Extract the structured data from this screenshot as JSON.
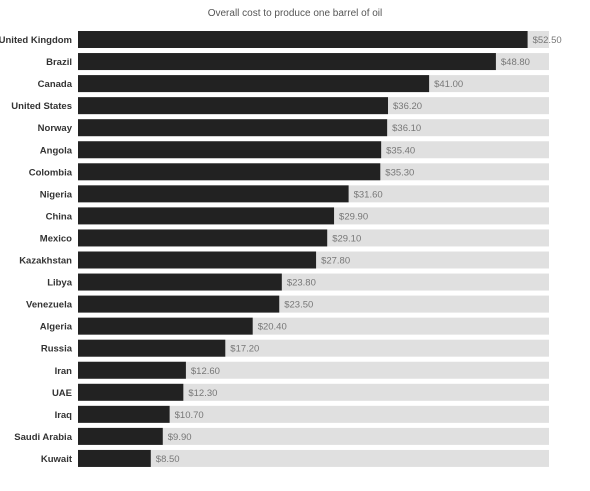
{
  "chart_data": {
    "type": "bar",
    "orientation": "horizontal",
    "title": "Overall cost to produce one barrel of oil",
    "xlabel": "",
    "ylabel": "",
    "value_prefix": "$",
    "xlim": [
      0,
      55
    ],
    "grid": false,
    "legend": "none",
    "categories": [
      "United Kingdom",
      "Brazil",
      "Canada",
      "United States",
      "Norway",
      "Angola",
      "Colombia",
      "Nigeria",
      "China",
      "Mexico",
      "Kazakhstan",
      "Libya",
      "Venezuela",
      "Algeria",
      "Russia",
      "Iran",
      "UAE",
      "Iraq",
      "Saudi Arabia",
      "Kuwait"
    ],
    "values": [
      52.5,
      48.8,
      41.0,
      36.2,
      36.1,
      35.4,
      35.3,
      31.6,
      29.9,
      29.1,
      27.8,
      23.8,
      23.5,
      20.4,
      17.2,
      12.6,
      12.3,
      10.7,
      9.9,
      8.5
    ],
    "value_labels": [
      "$52.50",
      "$48.80",
      "$41.00",
      "$36.20",
      "$36.10",
      "$35.40",
      "$35.30",
      "$31.60",
      "$29.90",
      "$29.10",
      "$27.80",
      "$23.80",
      "$23.50",
      "$20.40",
      "$17.20",
      "$12.60",
      "$12.30",
      "$10.70",
      "$9.90",
      "$8.50"
    ],
    "colors": {
      "bar": "#222222",
      "track": "#e0e0e0",
      "category_label": "#333333",
      "value_label": "#777777",
      "title": "#555555"
    }
  }
}
